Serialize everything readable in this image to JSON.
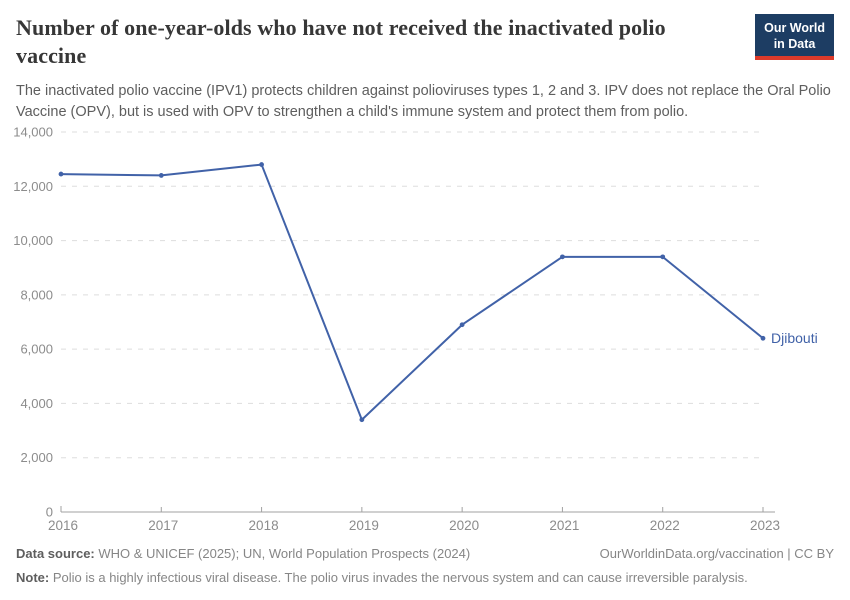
{
  "header": {
    "logo": {
      "line1": "Our World",
      "line2": "in Data"
    }
  },
  "chart_data": {
    "type": "line",
    "title": "Number of one-year-olds who have not received the inactivated polio vaccine",
    "subtitle": "The inactivated polio vaccine (IPV1) protects children against polioviruses types 1, 2 and 3. IPV does not replace the Oral Polio Vaccine (OPV), but is used with OPV to strengthen a child's immune system and protect them from polio.",
    "x": [
      2016,
      2017,
      2018,
      2019,
      2020,
      2021,
      2022,
      2023
    ],
    "series": [
      {
        "name": "Djibouti",
        "color": "#4162a8",
        "values": [
          12450,
          12400,
          12800,
          3400,
          6900,
          9400,
          9400,
          6400
        ]
      }
    ],
    "ylim": [
      0,
      14000
    ],
    "ytick_step": 2000,
    "ytick_labels": [
      "0",
      "2,000",
      "4,000",
      "6,000",
      "8,000",
      "10,000",
      "12,000",
      "14,000"
    ],
    "xlabel": "",
    "ylabel": "",
    "grid": "horizontal-dashed",
    "legend": "end-of-line-label"
  },
  "colors": {
    "line": "#4162a8",
    "grid": "#dddddd",
    "axis": "#a1a1a1",
    "tick_label": "#8c8c8c",
    "logo_bg": "#1d3d63",
    "logo_bar": "#dc3a2a"
  },
  "footer": {
    "data_source_label": "Data source:",
    "data_source_text": "WHO & UNICEF (2025); UN, World Population Prospects (2024)",
    "attribution": "OurWorldinData.org/vaccination | CC BY",
    "note_label": "Note:",
    "note_text": "Polio is a highly infectious viral disease. The polio virus invades the nervous system and can cause irreversible paralysis."
  }
}
